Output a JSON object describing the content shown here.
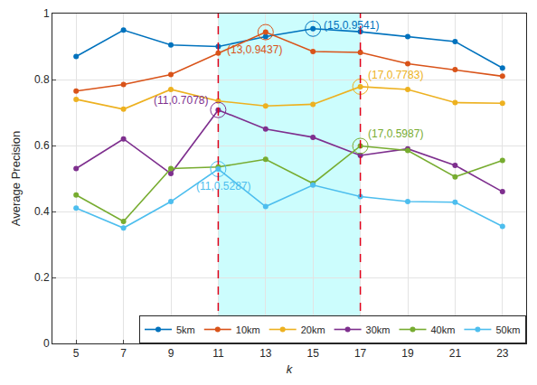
{
  "chart_data": {
    "type": "line",
    "x_label": "k",
    "y_label": "Average Precision",
    "x": [
      5,
      7,
      9,
      11,
      13,
      15,
      17,
      19,
      21,
      23
    ],
    "xlim": [
      4,
      24
    ],
    "xticks": [
      5,
      7,
      9,
      11,
      13,
      15,
      17,
      19,
      21,
      23
    ],
    "ylim": [
      0,
      1
    ],
    "yticks": [
      0,
      0.2,
      0.4,
      0.6,
      0.8,
      1
    ],
    "grid": true,
    "legend": "lower right",
    "marker": "circle",
    "line_style": "solid",
    "highlight_range": [
      11,
      17
    ],
    "series": [
      {
        "name": "5km",
        "color": "#0072BD",
        "values": [
          0.87,
          0.95,
          0.905,
          0.9,
          0.93,
          0.9541,
          0.945,
          0.93,
          0.915,
          0.835
        ]
      },
      {
        "name": "10km",
        "color": "#D95319",
        "values": [
          0.765,
          0.785,
          0.815,
          0.88,
          0.9437,
          0.885,
          0.882,
          0.848,
          0.83,
          0.81
        ]
      },
      {
        "name": "20km",
        "color": "#EDB120",
        "values": [
          0.74,
          0.71,
          0.77,
          0.735,
          0.72,
          0.725,
          0.7783,
          0.77,
          0.73,
          0.728
        ]
      },
      {
        "name": "30km",
        "color": "#7E2F8E",
        "values": [
          0.53,
          0.62,
          0.515,
          0.7078,
          0.65,
          0.625,
          0.57,
          0.59,
          0.54,
          0.46
        ]
      },
      {
        "name": "40km",
        "color": "#77AC30",
        "values": [
          0.45,
          0.37,
          0.53,
          0.535,
          0.558,
          0.485,
          0.5987,
          0.585,
          0.505,
          0.555
        ]
      },
      {
        "name": "50km",
        "color": "#4DBEEE",
        "values": [
          0.41,
          0.35,
          0.43,
          0.5287,
          0.415,
          0.48,
          0.445,
          0.43,
          0.428,
          0.355
        ]
      }
    ],
    "annotations": [
      {
        "x": 15,
        "y": 0.9541,
        "text": "(15,0.9541)",
        "color": "#0072BD"
      },
      {
        "x": 13,
        "y": 0.9437,
        "text": "(13,0.9437)",
        "color": "#D95319"
      },
      {
        "x": 17,
        "y": 0.7783,
        "text": "(17,0.7783)",
        "color": "#EDB120"
      },
      {
        "x": 11,
        "y": 0.7078,
        "text": "(11,0.7078)",
        "color": "#7E2F8E"
      },
      {
        "x": 17,
        "y": 0.5987,
        "text": "(17,0.5987)",
        "color": "#77AC30"
      },
      {
        "x": 11,
        "y": 0.5287,
        "text": "(11,0.5287)",
        "color": "#4DBEEE"
      }
    ]
  }
}
